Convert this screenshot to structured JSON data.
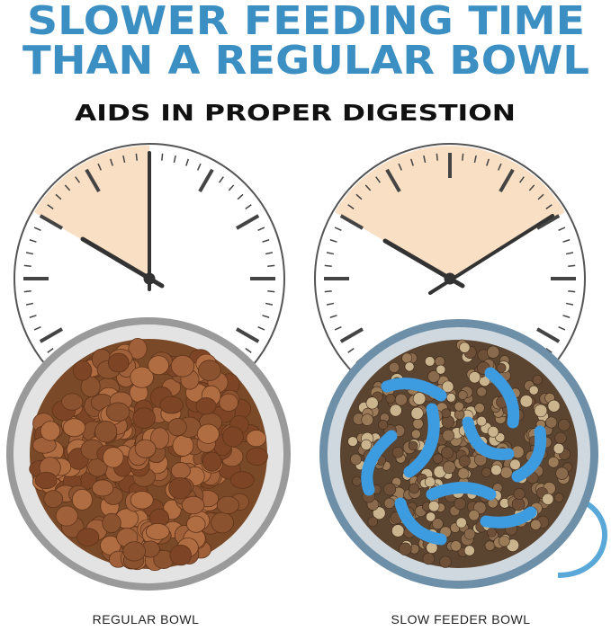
{
  "header": {
    "title_lines": [
      "SLOWER FEEDING TIME",
      "THAN A REGULAR BOWL"
    ],
    "subtitle": "AIDS IN PROPER DIGESTION"
  },
  "bowls": [
    {
      "label": "REGULAR BOWL"
    },
    {
      "label": "SLOW FEEDER BOWL"
    }
  ]
}
